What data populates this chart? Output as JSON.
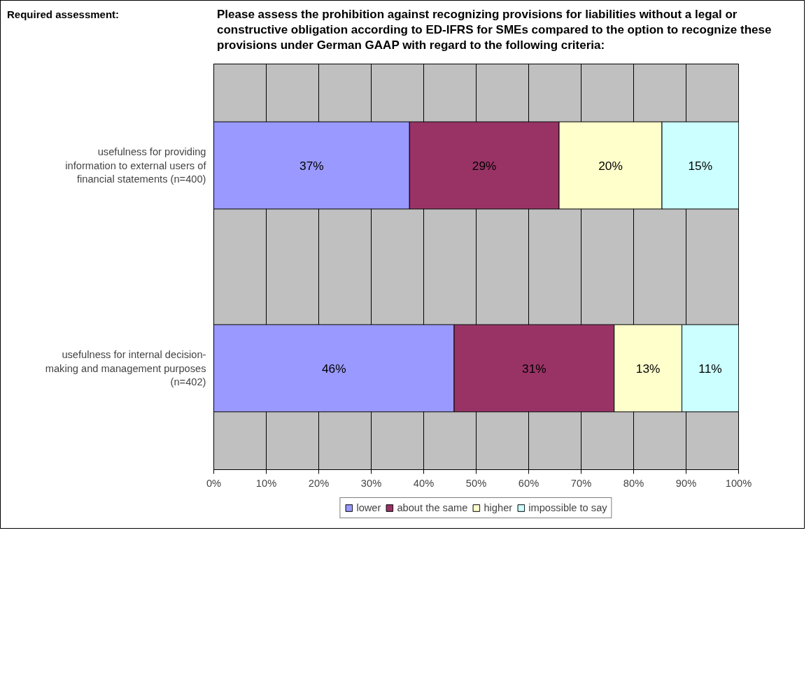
{
  "chart_data": {
    "type": "bar",
    "orientation": "horizontal",
    "stacked": true,
    "title": "Please assess the prohibition against recognizing provisions for liabilities without a legal or constructive obligation according to ED-IFRS for SMEs compared to the option to recognize these provisions under German GAAP with regard to the following criteria:",
    "annotations": [
      "Required assessment:"
    ],
    "categories": [
      "usefulness for providing information to external users of financial statements (n=400)",
      "usefulness for internal decision-making and management purposes (n=402)"
    ],
    "series": [
      {
        "name": "lower",
        "color": "#9999ff",
        "values": [
          37.3,
          45.8
        ],
        "value_labels": [
          "37%",
          "46%"
        ]
      },
      {
        "name": "about the same",
        "color": "#993366",
        "values": [
          28.5,
          30.5
        ],
        "value_labels": [
          "29%",
          "31%"
        ]
      },
      {
        "name": "higher",
        "color": "#ffffcc",
        "values": [
          19.6,
          12.9
        ],
        "value_labels": [
          "20%",
          "13%"
        ]
      },
      {
        "name": "impossible to say",
        "color": "#ccffff",
        "values": [
          14.6,
          10.8
        ],
        "value_labels": [
          "15%",
          "11%"
        ]
      }
    ],
    "xlim": [
      0,
      100
    ],
    "xticks": [
      {
        "value": 0,
        "label": "0%"
      },
      {
        "value": 10,
        "label": "10%"
      },
      {
        "value": 20,
        "label": "20%"
      },
      {
        "value": 30,
        "label": "30%"
      },
      {
        "value": 40,
        "label": "40%"
      },
      {
        "value": 50,
        "label": "50%"
      },
      {
        "value": 60,
        "label": "60%"
      },
      {
        "value": 70,
        "label": "70%"
      },
      {
        "value": 80,
        "label": "80%"
      },
      {
        "value": 90,
        "label": "90%"
      },
      {
        "value": 100,
        "label": "100%"
      }
    ],
    "grid": "x",
    "legend": "bottom"
  }
}
